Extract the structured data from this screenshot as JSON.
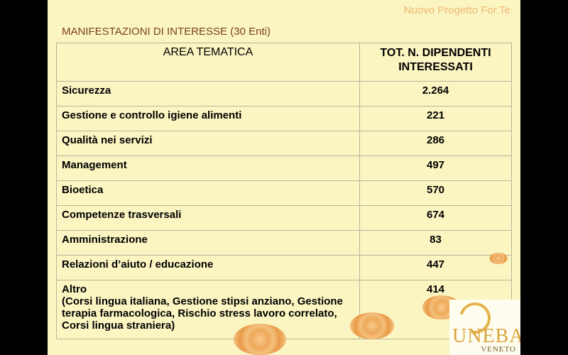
{
  "header": {
    "project_title": "Nuovo Progetto For.Te.",
    "subtitle": "MANIFESTAZIONI DI INTERESSE (30 Enti)"
  },
  "table": {
    "columns": [
      "AREA TEMATICA",
      "TOT.  N. DIPENDENTI INTERESSATI"
    ],
    "rows": [
      {
        "area": "Sicurezza",
        "total": "2.264"
      },
      {
        "area": "Gestione e controllo igiene alimenti",
        "total": "221"
      },
      {
        "area": "Qualità nei servizi",
        "total": "286"
      },
      {
        "area": "Management",
        "total": "497"
      },
      {
        "area": "Bioetica",
        "total": "570"
      },
      {
        "area": "Competenze trasversali",
        "total": "674"
      },
      {
        "area": "Amministrazione",
        "total": "83"
      },
      {
        "area": "Relazioni d’aiuto / educazione",
        "total": "447"
      },
      {
        "area": "Altro",
        "area_detail": "(Corsi lingua italiana, Gestione stipsi anziano, Gestione terapia farmacologica, Rischio  stress lavoro correlato, Corsi lingua straniera)",
        "total": "414"
      }
    ]
  },
  "logo": {
    "name": "UNEBA",
    "region": "VENETO"
  }
}
